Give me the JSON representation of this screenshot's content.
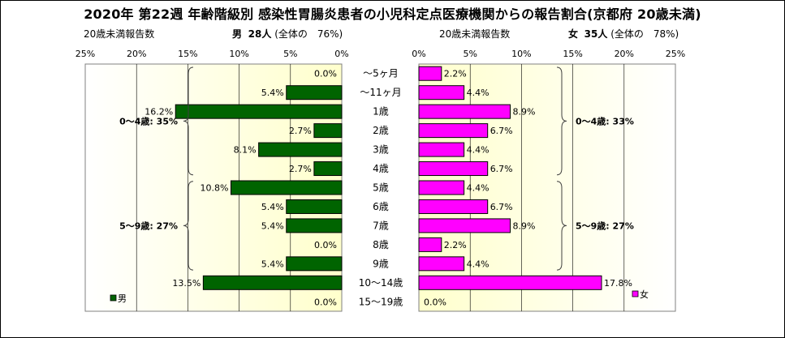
{
  "title": "2020年 第22週 年齢階級別 感染性胃腸炎患者の小児科定点医療機関からの報告割合(京都府 20歳未満)",
  "left": {
    "caption": "20歳未満報告数",
    "sex": "男",
    "count": "28人",
    "total": "(全体の　76%)",
    "ticks": [
      "25%",
      "20%",
      "15%",
      "10%",
      "5%",
      "0%"
    ],
    "legend": "男",
    "brackets": [
      {
        "label": "0～4歳: 35%"
      },
      {
        "label": "5～9歳: 27%"
      }
    ]
  },
  "right": {
    "caption": "20歳未満報告数",
    "sex": "女",
    "count": "35人",
    "total": "(全体の　78%)",
    "ticks": [
      "0%",
      "5%",
      "10%",
      "15%",
      "20%",
      "25%"
    ],
    "legend": "女",
    "brackets": [
      {
        "label": "0～4歳: 33%"
      },
      {
        "label": "5～9歳: 27%"
      }
    ]
  },
  "colors": {
    "male": "#006400",
    "female": "#ff00ff",
    "plot_bg": "#ffffcc"
  },
  "chart_data": {
    "type": "bar",
    "orientation": "horizontal",
    "categories": [
      "～5ヶ月",
      "～11ヶ月",
      "1歳",
      "2歳",
      "3歳",
      "4歳",
      "5歳",
      "6歳",
      "7歳",
      "8歳",
      "9歳",
      "10～14歳",
      "15～19歳"
    ],
    "series": [
      {
        "name": "男",
        "values": [
          0.0,
          5.4,
          16.2,
          2.7,
          8.1,
          2.7,
          10.8,
          5.4,
          5.4,
          0.0,
          5.4,
          13.5,
          0.0
        ],
        "labels": [
          "0.0%",
          "5.4%",
          "16.2%",
          "2.7%",
          "8.1%",
          "2.7%",
          "10.8%",
          "5.4%",
          "5.4%",
          "0.0%",
          "5.4%",
          "13.5%",
          "0.0%"
        ]
      },
      {
        "name": "女",
        "values": [
          2.2,
          4.4,
          8.9,
          6.7,
          4.4,
          6.7,
          4.4,
          6.7,
          8.9,
          2.2,
          4.4,
          17.8,
          0.0
        ],
        "labels": [
          "2.2%",
          "4.4%",
          "8.9%",
          "6.7%",
          "4.4%",
          "6.7%",
          "4.4%",
          "6.7%",
          "8.9%",
          "2.2%",
          "4.4%",
          "17.8%",
          "0.0%"
        ]
      }
    ],
    "xlim": [
      0,
      25
    ],
    "unit": "%"
  }
}
